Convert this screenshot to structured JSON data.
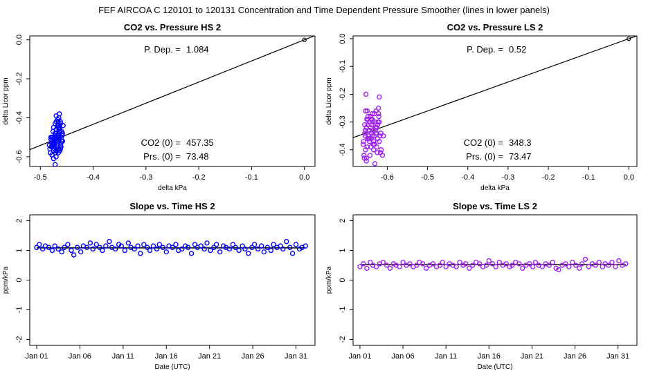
{
  "main_title": "FEF   AIRCOA C   120101 to 120131   Concentration and Time Dependent Pressure Smoother (lines in lower panels)",
  "colors": {
    "hs": "#0000ff",
    "ls": "#a020f0",
    "line": "#000000"
  },
  "chart_data": [
    {
      "id": "hs-pressure",
      "type": "scatter",
      "title": "CO2 vs. Pressure HS 2",
      "xlabel": "delta kPa",
      "ylabel": "delta Licor ppm",
      "xlim": [
        -0.52,
        0.02
      ],
      "ylim": [
        -0.65,
        0.02
      ],
      "xticks": [
        -0.5,
        -0.4,
        -0.3,
        -0.2,
        -0.1,
        0.0
      ],
      "xtick_labels": [
        "-0.5",
        "-0.4",
        "-0.3",
        "-0.2",
        "-0.1",
        "0.0"
      ],
      "yticks": [
        0.0,
        -0.2,
        -0.4,
        -0.6
      ],
      "ytick_labels": [
        "0.0",
        "-0.2",
        "-0.4",
        "-0.6"
      ],
      "color": "hs",
      "fit_slope": 1.084,
      "origin_point": [
        0,
        0
      ],
      "annotations": {
        "pdep_label": "P. Dep. =",
        "pdep_value": "1.084",
        "co2_label": "CO2 (0) =",
        "co2_value": "457.35",
        "prs_label": "Prs. (0) =",
        "prs_value": "73.48"
      },
      "x": [
        -0.476,
        -0.472,
        -0.468,
        -0.465,
        -0.462,
        -0.478,
        -0.474,
        -0.47,
        -0.466,
        -0.463,
        -0.46,
        -0.481,
        -0.477,
        -0.473,
        -0.469,
        -0.467,
        -0.464,
        -0.461,
        -0.458,
        -0.479,
        -0.475,
        -0.471,
        -0.468,
        -0.465,
        -0.462,
        -0.48,
        -0.476,
        -0.472,
        -0.469,
        -0.466,
        -0.463,
        -0.46,
        -0.457,
        -0.482,
        -0.478,
        -0.474,
        -0.47,
        -0.467,
        -0.464,
        -0.461,
        -0.479,
        -0.475,
        -0.471,
        -0.468,
        -0.465,
        -0.462,
        -0.459,
        -0.477,
        -0.473,
        -0.47,
        -0.466,
        -0.463,
        -0.46,
        -0.483,
        -0.476,
        -0.472,
        -0.468,
        -0.465,
        -0.462,
        -0.478,
        -0.474,
        -0.47,
        -0.467,
        -0.464,
        -0.461,
        -0.48,
        -0.475,
        -0.471,
        -0.468,
        -0.465,
        -0.458,
        -0.473,
        -0.469,
        -0.466,
        -0.463,
        -0.476,
        -0.472,
        -0.468,
        -0.465,
        -0.47
      ],
      "y": [
        -0.5,
        -0.48,
        -0.52,
        -0.45,
        -0.43,
        -0.55,
        -0.53,
        -0.57,
        -0.42,
        -0.47,
        -0.5,
        -0.58,
        -0.54,
        -0.5,
        -0.46,
        -0.44,
        -0.51,
        -0.55,
        -0.48,
        -0.53,
        -0.57,
        -0.52,
        -0.49,
        -0.4,
        -0.56,
        -0.51,
        -0.47,
        -0.43,
        -0.55,
        -0.58,
        -0.45,
        -0.52,
        -0.44,
        -0.56,
        -0.5,
        -0.54,
        -0.6,
        -0.41,
        -0.49,
        -0.53,
        -0.55,
        -0.45,
        -0.58,
        -0.5,
        -0.46,
        -0.54,
        -0.49,
        -0.52,
        -0.56,
        -0.39,
        -0.51,
        -0.57,
        -0.47,
        -0.54,
        -0.53,
        -0.49,
        -0.55,
        -0.5,
        -0.42,
        -0.59,
        -0.52,
        -0.46,
        -0.54,
        -0.38,
        -0.55,
        -0.5,
        -0.61,
        -0.48,
        -0.56,
        -0.44,
        -0.52,
        -0.53,
        -0.57,
        -0.49,
        -0.47,
        -0.54,
        -0.64,
        -0.5,
        -0.56,
        -0.42
      ]
    },
    {
      "id": "ls-pressure",
      "type": "scatter",
      "title": "CO2 vs. Pressure LS 2",
      "xlabel": "delta kPa",
      "ylabel": "delta Licor ppm",
      "xlim": [
        -0.685,
        0.02
      ],
      "ylim": [
        -0.46,
        0.01
      ],
      "xticks": [
        -0.6,
        -0.5,
        -0.4,
        -0.3,
        -0.2,
        -0.1,
        0.0
      ],
      "xtick_labels": [
        "-0.6",
        "-0.5",
        "-0.4",
        "-0.3",
        "-0.2",
        "-0.1",
        "0.0"
      ],
      "yticks": [
        0.0,
        -0.1,
        -0.2,
        -0.3,
        -0.4
      ],
      "ytick_labels": [
        "0.0",
        "-0.1",
        "-0.2",
        "-0.3",
        "-0.4"
      ],
      "color": "ls",
      "fit_slope": 0.52,
      "origin_point": [
        0,
        0
      ],
      "annotations": {
        "pdep_label": "P. Dep. =",
        "pdep_value": "0.52",
        "co2_label": "CO2 (0) =",
        "co2_value": "348.3",
        "prs_label": "Prs. (0) =",
        "prs_value": "73.47"
      },
      "x": [
        -0.66,
        -0.655,
        -0.652,
        -0.648,
        -0.644,
        -0.64,
        -0.636,
        -0.632,
        -0.628,
        -0.624,
        -0.62,
        -0.658,
        -0.654,
        -0.65,
        -0.646,
        -0.642,
        -0.638,
        -0.634,
        -0.63,
        -0.626,
        -0.622,
        -0.656,
        -0.652,
        -0.648,
        -0.644,
        -0.64,
        -0.636,
        -0.632,
        -0.628,
        -0.624,
        -0.62,
        -0.616,
        -0.657,
        -0.653,
        -0.649,
        -0.645,
        -0.641,
        -0.637,
        -0.633,
        -0.629,
        -0.625,
        -0.621,
        -0.659,
        -0.655,
        -0.651,
        -0.647,
        -0.643,
        -0.639,
        -0.635,
        -0.631,
        -0.627,
        -0.623,
        -0.654,
        -0.65,
        -0.646,
        -0.642,
        -0.638,
        -0.634,
        -0.63,
        -0.626,
        -0.622,
        -0.618,
        -0.656,
        -0.652,
        -0.648,
        -0.644,
        -0.64,
        -0.636,
        -0.632,
        -0.628,
        -0.615,
        -0.612,
        -0.61,
        -0.62,
        -0.617
      ],
      "y": [
        -0.38,
        -0.35,
        -0.32,
        -0.29,
        -0.33,
        -0.36,
        -0.3,
        -0.27,
        -0.34,
        -0.31,
        -0.37,
        -0.42,
        -0.26,
        -0.39,
        -0.33,
        -0.28,
        -0.35,
        -0.4,
        -0.3,
        -0.32,
        -0.25,
        -0.34,
        -0.44,
        -0.31,
        -0.37,
        -0.29,
        -0.33,
        -0.38,
        -0.26,
        -0.36,
        -0.3,
        -0.34,
        -0.43,
        -0.2,
        -0.36,
        -0.3,
        -0.39,
        -0.27,
        -0.35,
        -0.32,
        -0.41,
        -0.28,
        -0.37,
        -0.33,
        -0.29,
        -0.35,
        -0.42,
        -0.31,
        -0.38,
        -0.45,
        -0.34,
        -0.3,
        -0.4,
        -0.26,
        -0.36,
        -0.32,
        -0.29,
        -0.37,
        -0.33,
        -0.39,
        -0.27,
        -0.35,
        -0.31,
        -0.43,
        -0.28,
        -0.36,
        -0.34,
        -0.3,
        -0.38,
        -0.32,
        -0.4,
        -0.42,
        -0.35,
        -0.21,
        -0.41
      ]
    },
    {
      "id": "hs-slope",
      "type": "scatter",
      "title": "Slope vs. Time HS 2",
      "xlabel": "Date (UTC)",
      "ylabel": "ppm/kPa",
      "xlim": [
        -0.8,
        32.2
      ],
      "ylim": [
        -2.2,
        2.2
      ],
      "xticks": [
        0,
        5,
        10,
        15,
        20,
        25,
        30
      ],
      "xtick_labels": [
        "Jan 01",
        "Jan 06",
        "Jan 11",
        "Jan 16",
        "Jan 21",
        "Jan 26",
        "Jan 31"
      ],
      "yticks": [
        -2,
        -1,
        0,
        1,
        2
      ],
      "ytick_labels": [
        "-2",
        "-1",
        "0",
        "1",
        "2"
      ],
      "color": "hs",
      "smoother_value": 1.084,
      "x": [
        0.0,
        0.3,
        0.7,
        1.0,
        1.4,
        1.8,
        2.1,
        2.5,
        2.9,
        3.2,
        3.6,
        4.0,
        4.3,
        4.7,
        5.1,
        5.4,
        5.8,
        6.2,
        6.5,
        6.9,
        7.3,
        7.6,
        8.0,
        8.4,
        8.7,
        9.1,
        9.5,
        9.8,
        10.2,
        10.6,
        10.9,
        11.3,
        11.7,
        12.0,
        12.4,
        12.8,
        13.1,
        13.5,
        13.9,
        14.2,
        14.6,
        15.0,
        15.3,
        15.7,
        16.1,
        16.4,
        16.8,
        17.2,
        17.5,
        17.9,
        18.3,
        18.6,
        19.0,
        19.4,
        19.7,
        20.1,
        20.5,
        20.8,
        21.2,
        21.6,
        21.9,
        22.3,
        22.7,
        23.0,
        23.4,
        23.8,
        24.1,
        24.5,
        24.9,
        25.2,
        25.6,
        26.0,
        26.3,
        26.7,
        27.1,
        27.4,
        27.8,
        28.2,
        28.5,
        28.9,
        29.3,
        29.6,
        30.0,
        30.4,
        30.7,
        31.1
      ],
      "y": [
        1.1,
        1.2,
        1.05,
        1.15,
        1.1,
        1.0,
        1.15,
        1.05,
        0.95,
        1.1,
        1.2,
        1.0,
        0.85,
        1.1,
        0.95,
        1.15,
        1.1,
        1.25,
        1.05,
        1.2,
        1.1,
        1.0,
        1.15,
        1.3,
        1.1,
        1.05,
        1.2,
        1.15,
        1.0,
        1.25,
        1.1,
        1.05,
        1.15,
        0.9,
        1.2,
        1.1,
        1.0,
        1.15,
        1.05,
        1.2,
        1.1,
        0.95,
        1.15,
        1.1,
        1.2,
        1.0,
        1.05,
        1.15,
        1.1,
        0.9,
        1.2,
        1.1,
        1.15,
        1.05,
        1.25,
        1.0,
        1.1,
        1.2,
        0.95,
        1.15,
        1.1,
        1.05,
        1.2,
        1.1,
        1.0,
        1.15,
        1.05,
        0.9,
        1.1,
        1.2,
        1.05,
        1.15,
        0.95,
        1.1,
        1.0,
        1.2,
        1.1,
        1.15,
        1.05,
        1.3,
        1.1,
        0.9,
        1.2,
        1.05,
        1.1,
        1.15
      ]
    },
    {
      "id": "ls-slope",
      "type": "scatter",
      "title": "Slope vs. Time LS 2",
      "xlabel": "Date (UTC)",
      "ylabel": "ppm/kPa",
      "xlim": [
        -0.8,
        32.2
      ],
      "ylim": [
        -2.2,
        2.2
      ],
      "xticks": [
        0,
        5,
        10,
        15,
        20,
        25,
        30
      ],
      "xtick_labels": [
        "Jan 01",
        "Jan 06",
        "Jan 11",
        "Jan 16",
        "Jan 21",
        "Jan 26",
        "Jan 31"
      ],
      "yticks": [
        -2,
        -1,
        0,
        1,
        2
      ],
      "ytick_labels": [
        "-2",
        "-1",
        "0",
        "1",
        "2"
      ],
      "color": "ls",
      "smoother_value": 0.52,
      "x": [
        0.0,
        0.4,
        0.8,
        1.2,
        1.5,
        1.9,
        2.3,
        2.7,
        3.1,
        3.5,
        3.9,
        4.2,
        4.6,
        5.0,
        5.4,
        5.8,
        6.2,
        6.6,
        6.9,
        7.3,
        7.7,
        8.1,
        8.5,
        8.9,
        9.3,
        9.6,
        10.0,
        10.4,
        10.8,
        11.2,
        11.6,
        12.0,
        12.3,
        12.7,
        13.1,
        13.5,
        13.9,
        14.3,
        14.7,
        15.0,
        15.4,
        15.8,
        16.2,
        16.6,
        17.0,
        17.4,
        17.7,
        18.1,
        18.5,
        18.9,
        19.3,
        19.7,
        20.1,
        20.4,
        20.8,
        21.2,
        21.6,
        22.0,
        22.4,
        22.8,
        23.1,
        23.5,
        23.9,
        24.3,
        24.7,
        25.1,
        25.5,
        25.8,
        26.2,
        26.6,
        27.0,
        27.4,
        27.8,
        28.2,
        28.5,
        28.9,
        29.3,
        29.7,
        30.1,
        30.5,
        30.9
      ],
      "y": [
        0.45,
        0.55,
        0.4,
        0.6,
        0.5,
        0.45,
        0.55,
        0.6,
        0.5,
        0.4,
        0.55,
        0.5,
        0.45,
        0.6,
        0.5,
        0.55,
        0.45,
        0.5,
        0.6,
        0.55,
        0.4,
        0.5,
        0.55,
        0.45,
        0.5,
        0.6,
        0.45,
        0.55,
        0.5,
        0.45,
        0.6,
        0.5,
        0.55,
        0.4,
        0.5,
        0.6,
        0.55,
        0.45,
        0.5,
        0.65,
        0.55,
        0.45,
        0.6,
        0.5,
        0.55,
        0.45,
        0.5,
        0.6,
        0.55,
        0.4,
        0.5,
        0.55,
        0.45,
        0.6,
        0.5,
        0.45,
        0.55,
        0.5,
        0.6,
        0.4,
        0.35,
        0.5,
        0.55,
        0.45,
        0.6,
        0.5,
        0.4,
        0.55,
        0.7,
        0.45,
        0.55,
        0.5,
        0.6,
        0.45,
        0.55,
        0.5,
        0.6,
        0.45,
        0.65,
        0.5,
        0.55
      ]
    }
  ]
}
